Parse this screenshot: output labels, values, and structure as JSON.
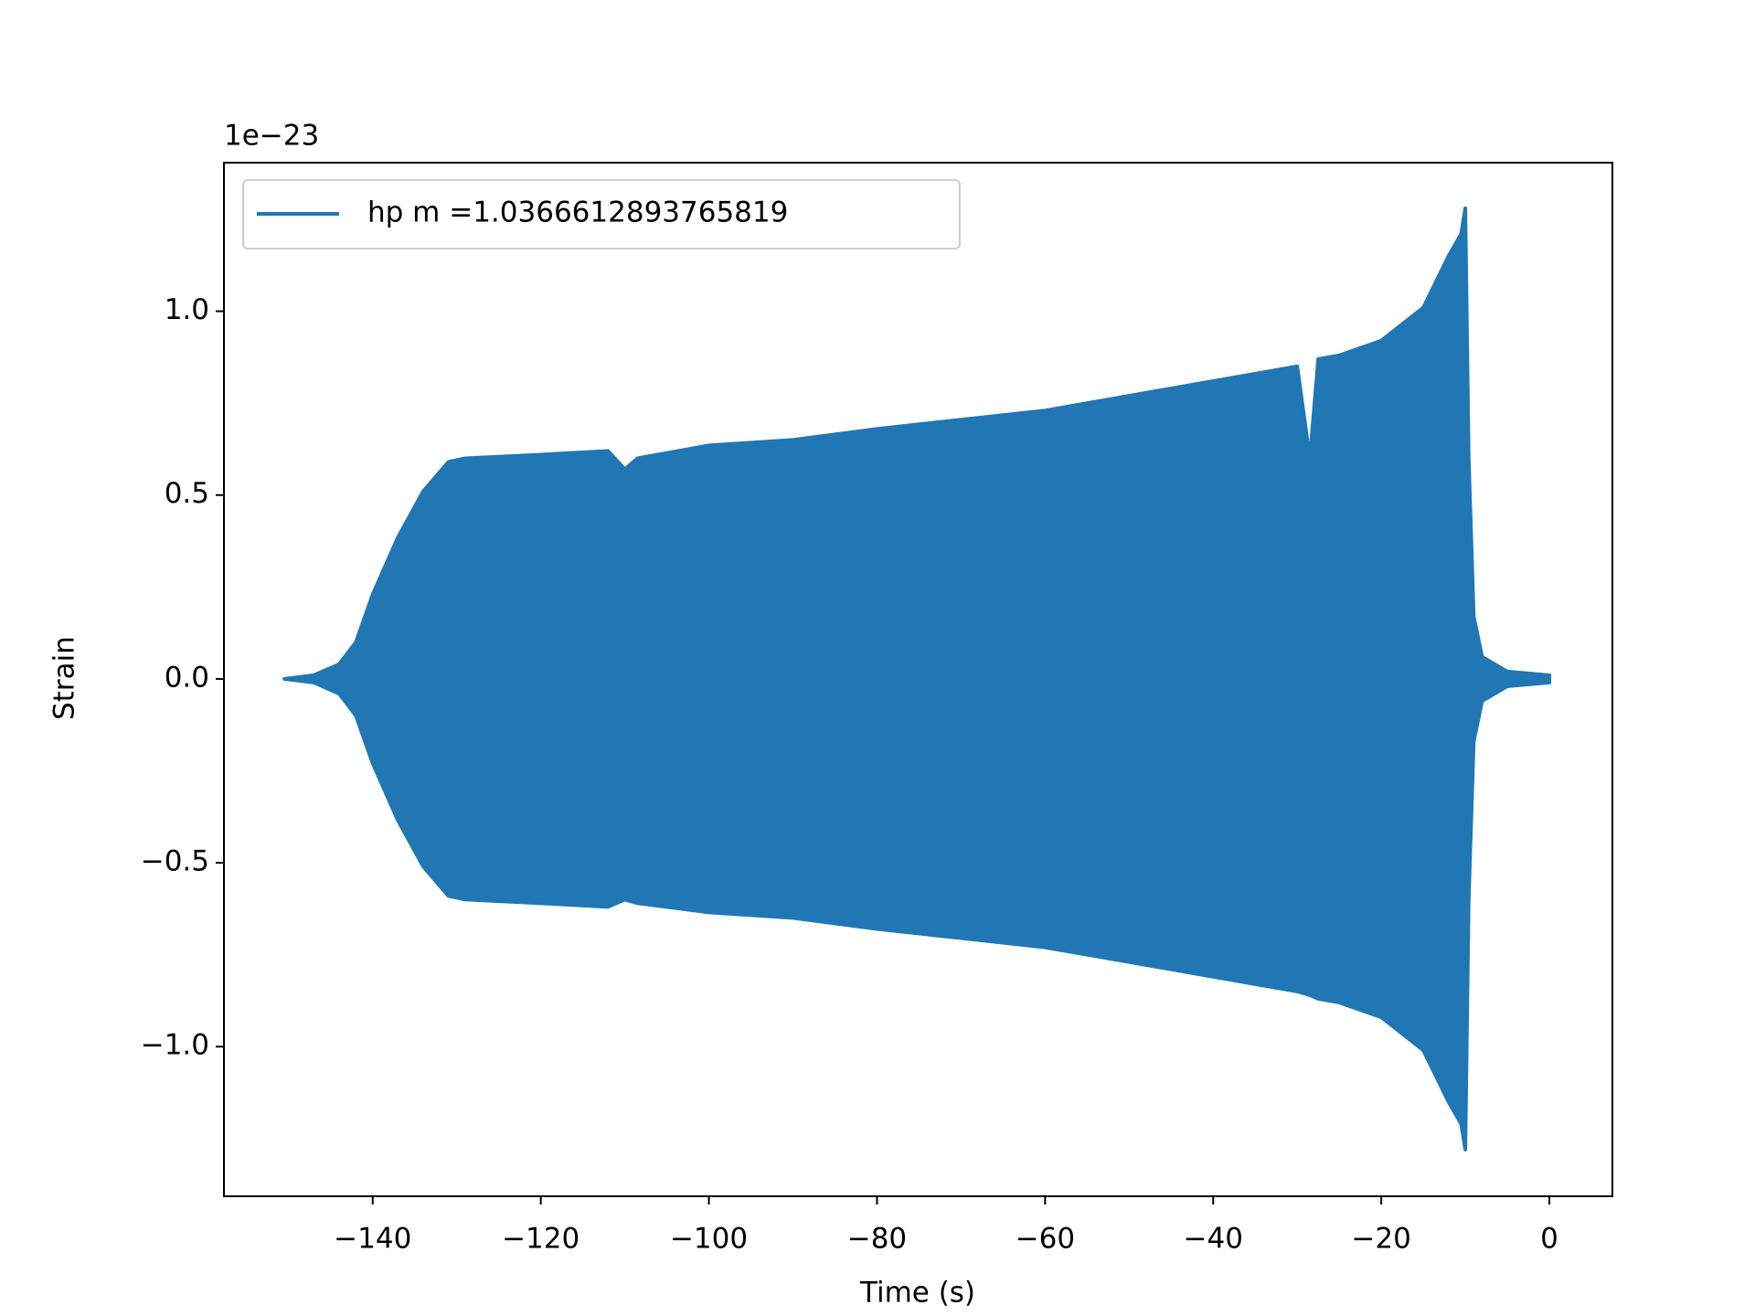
{
  "chart_data": {
    "type": "envelope",
    "offset_label": "1e−23",
    "xlabel": "Time (s)",
    "ylabel": "Strain",
    "legend": "upper left",
    "xlim": [
      -157.7,
      7.5
    ],
    "ylim": [
      -1.407,
      1.404
    ],
    "xticks": [
      {
        "value": -140,
        "label": "−140"
      },
      {
        "value": -120,
        "label": "−120"
      },
      {
        "value": -100,
        "label": "−100"
      },
      {
        "value": -80,
        "label": "−80"
      },
      {
        "value": -60,
        "label": "−60"
      },
      {
        "value": -40,
        "label": "−40"
      },
      {
        "value": -20,
        "label": "−20"
      },
      0
    ],
    "yticks": [
      {
        "value": -1,
        "label": "−1.0"
      },
      {
        "value": -0.5,
        "label": "−0.5"
      },
      {
        "value": 0,
        "label": "0.0"
      },
      0.5,
      {
        "value": 1,
        "label": "1.0"
      }
    ],
    "series": [
      {
        "name": "hp m =1.0366612893765819",
        "color": "#2077b4",
        "x": [
          -150.5,
          -147,
          -144,
          -142,
          -140,
          -137,
          -134,
          -131,
          -129,
          -120,
          -112,
          -110,
          -108.5,
          -100,
          -90,
          -80,
          -70,
          -60,
          -50,
          -40,
          -30,
          -28.5,
          -27.5,
          -25,
          -20,
          -15,
          -12,
          -10.5,
          -10,
          -9.6,
          -9,
          -8,
          -5,
          0
        ],
        "values": [
          0,
          0.01,
          0.04,
          0.1,
          0.23,
          0.385,
          0.51,
          0.59,
          0.6,
          0.61,
          0.62,
          0.57,
          0.6,
          0.635,
          0.65,
          0.68,
          0.705,
          0.73,
          0.77,
          0.81,
          0.85,
          0.6,
          0.87,
          0.88,
          0.92,
          1.01,
          1.15,
          1.21,
          1.28,
          0.6,
          0.17,
          0.06,
          0.02,
          0.01
        ],
        "lower": [
          0,
          -0.01,
          -0.04,
          -0.1,
          -0.23,
          -0.385,
          -0.51,
          -0.59,
          -0.6,
          -0.61,
          -0.62,
          -0.6,
          -0.61,
          -0.635,
          -0.65,
          -0.68,
          -0.705,
          -0.73,
          -0.77,
          -0.81,
          -0.85,
          -0.86,
          -0.87,
          -0.88,
          -0.92,
          -1.01,
          -1.15,
          -1.21,
          -1.28,
          -0.6,
          -0.17,
          -0.06,
          -0.02,
          -0.01
        ]
      }
    ]
  }
}
